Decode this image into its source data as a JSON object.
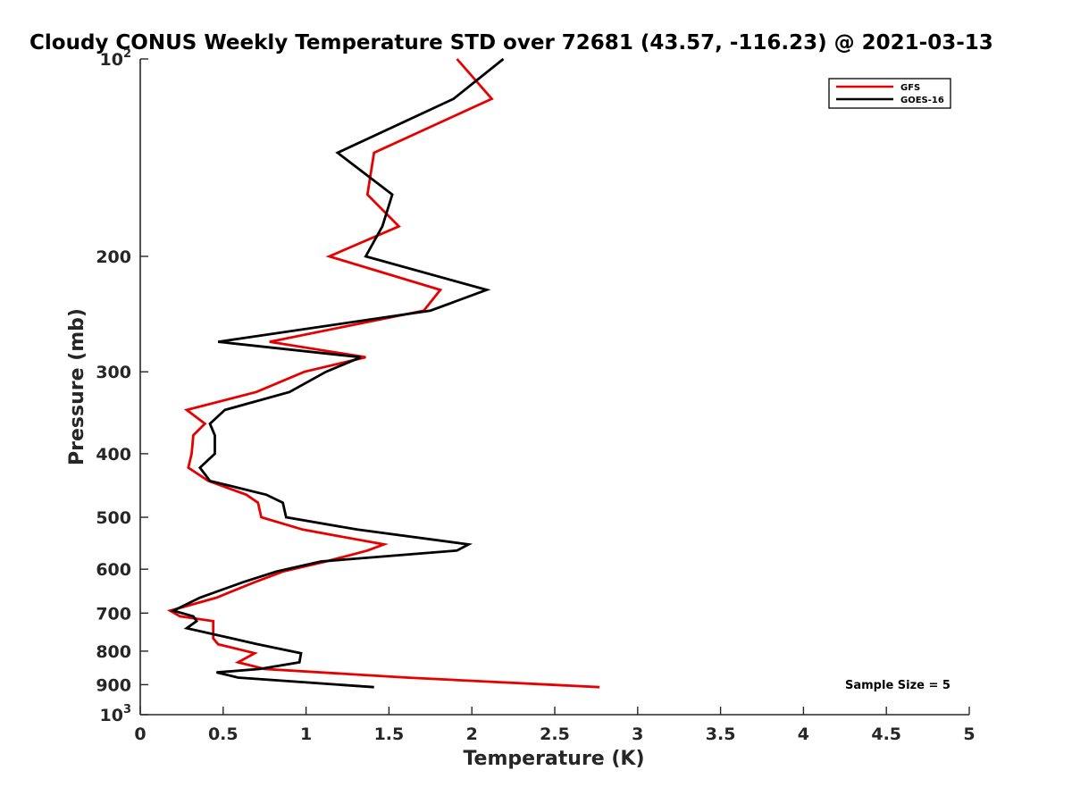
{
  "chart_data": {
    "type": "line",
    "title": "Cloudy CONUS Weekly Temperature STD over 72681 (43.57, -116.23) @ 2021-03-13",
    "xlabel": "Temperature (K)",
    "ylabel": "Pressure (mb)",
    "xlim": [
      0,
      5
    ],
    "ylim": [
      100,
      1000
    ],
    "y_scale": "log",
    "y_reversed": true,
    "x_ticks": [
      "0",
      "0.5",
      "1",
      "1.5",
      "2",
      "2.5",
      "3",
      "3.5",
      "4",
      "4.5",
      "5"
    ],
    "y_ticks": [
      {
        "value": 100,
        "label": "10",
        "sup": "2"
      },
      {
        "value": 200,
        "label": "200"
      },
      {
        "value": 300,
        "label": "300"
      },
      {
        "value": 400,
        "label": "400"
      },
      {
        "value": 500,
        "label": "500"
      },
      {
        "value": 600,
        "label": "600"
      },
      {
        "value": 700,
        "label": "700"
      },
      {
        "value": 800,
        "label": "800"
      },
      {
        "value": 900,
        "label": "900"
      },
      {
        "value": 1000,
        "label": "10",
        "sup": "3"
      }
    ],
    "grid": false,
    "legend_position": "top-right",
    "annotation": "Sample Size = 5",
    "series": [
      {
        "name": "GFS",
        "color": "#e60000",
        "points": [
          [
            1.91,
            100
          ],
          [
            2.12,
            115
          ],
          [
            1.41,
            139
          ],
          [
            1.37,
            161
          ],
          [
            1.56,
            180
          ],
          [
            1.14,
            200
          ],
          [
            1.81,
            225
          ],
          [
            1.71,
            242
          ],
          [
            0.78,
            270
          ],
          [
            1.36,
            285
          ],
          [
            0.99,
            300
          ],
          [
            0.7,
            322
          ],
          [
            0.28,
            343
          ],
          [
            0.39,
            360
          ],
          [
            0.32,
            375
          ],
          [
            0.31,
            400
          ],
          [
            0.29,
            420
          ],
          [
            0.41,
            440
          ],
          [
            0.64,
            462
          ],
          [
            0.71,
            475
          ],
          [
            0.73,
            500
          ],
          [
            0.98,
            522
          ],
          [
            1.47,
            550
          ],
          [
            1.37,
            562
          ],
          [
            1.12,
            584
          ],
          [
            0.86,
            605
          ],
          [
            0.69,
            628
          ],
          [
            0.46,
            663
          ],
          [
            0.18,
            694
          ],
          [
            0.24,
            708
          ],
          [
            0.44,
            720
          ],
          [
            0.44,
            765
          ],
          [
            0.47,
            781
          ],
          [
            0.69,
            806
          ],
          [
            0.59,
            832
          ],
          [
            0.75,
            852
          ],
          [
            1.61,
            878
          ],
          [
            2.77,
            908
          ]
        ]
      },
      {
        "name": "GOES-16",
        "color": "#000000",
        "points": [
          [
            2.19,
            100
          ],
          [
            1.89,
            115
          ],
          [
            1.19,
            139
          ],
          [
            1.52,
            161
          ],
          [
            1.46,
            180
          ],
          [
            1.36,
            200
          ],
          [
            2.09,
            225
          ],
          [
            1.75,
            242
          ],
          [
            0.47,
            270
          ],
          [
            1.33,
            285
          ],
          [
            1.12,
            300
          ],
          [
            0.9,
            322
          ],
          [
            0.51,
            343
          ],
          [
            0.42,
            360
          ],
          [
            0.45,
            375
          ],
          [
            0.45,
            400
          ],
          [
            0.36,
            420
          ],
          [
            0.42,
            440
          ],
          [
            0.76,
            462
          ],
          [
            0.86,
            475
          ],
          [
            0.88,
            500
          ],
          [
            1.31,
            522
          ],
          [
            1.98,
            550
          ],
          [
            1.91,
            562
          ],
          [
            1.09,
            584
          ],
          [
            0.82,
            605
          ],
          [
            0.62,
            628
          ],
          [
            0.36,
            663
          ],
          [
            0.2,
            694
          ],
          [
            0.32,
            708
          ],
          [
            0.34,
            720
          ],
          [
            0.28,
            738
          ],
          [
            0.71,
            781
          ],
          [
            0.97,
            806
          ],
          [
            0.96,
            832
          ],
          [
            0.72,
            852
          ],
          [
            0.46,
            862
          ],
          [
            0.59,
            878
          ],
          [
            1.41,
            908
          ]
        ]
      }
    ]
  }
}
